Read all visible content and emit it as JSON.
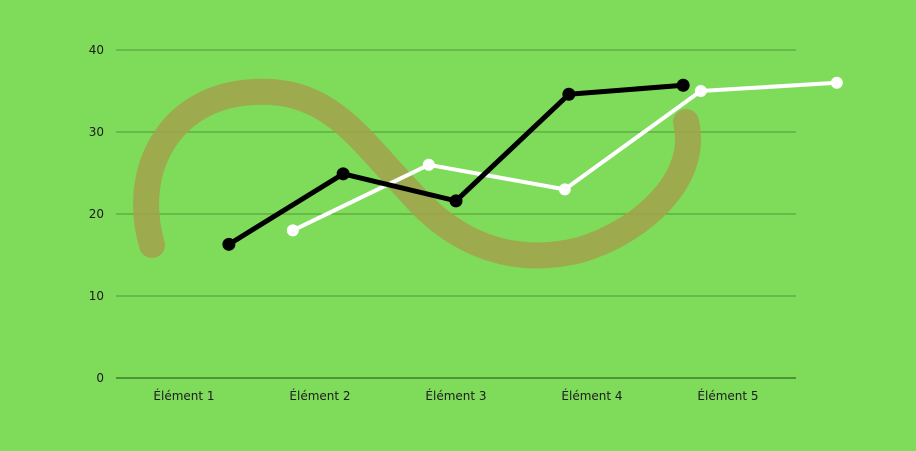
{
  "chart_data": {
    "type": "line",
    "categories": [
      "Élément 1",
      "Élément 2",
      "Élément 3",
      "Élément 4",
      "Élément 5"
    ],
    "y_ticks": [
      "0",
      "10",
      "20",
      "30",
      "40"
    ],
    "ylim": [
      0,
      40
    ],
    "grid": true,
    "series": [
      {
        "color": "#000000",
        "points": [
          {
            "x": 0.83,
            "y": 16.3
          },
          {
            "x": 1.67,
            "y": 24.9
          },
          {
            "x": 2.5,
            "y": 21.6
          },
          {
            "x": 3.33,
            "y": 34.6
          },
          {
            "x": 4.17,
            "y": 35.7
          }
        ]
      },
      {
        "color": "#ffffff",
        "points": [
          {
            "x": 1.3,
            "y": 18.0
          },
          {
            "x": 2.3,
            "y": 26.0
          },
          {
            "x": 3.3,
            "y": 23.0
          },
          {
            "x": 4.3,
            "y": 35.0
          },
          {
            "x": 5.3,
            "y": 36.0
          }
        ]
      }
    ],
    "background_color": "#7fdb5a",
    "decoration": "infinity-swirl"
  }
}
